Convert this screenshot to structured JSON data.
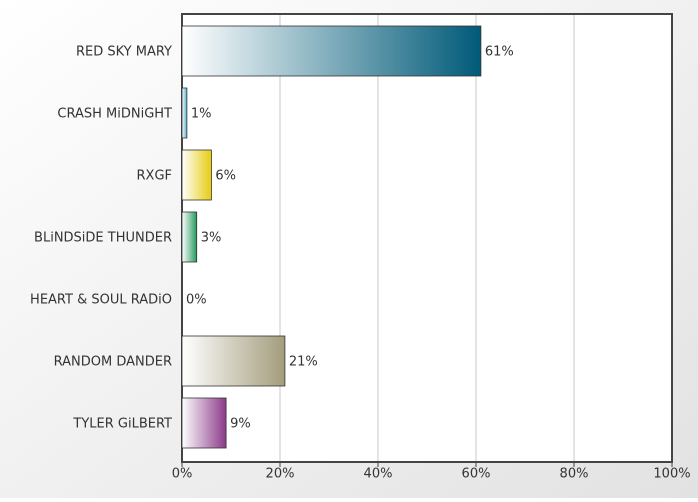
{
  "chart_data": {
    "type": "bar",
    "orientation": "horizontal",
    "categories": [
      "RED SKY MARY",
      "CRASH MiDNiGHT",
      "RXGF",
      "BLiNDSiDE THUNDER",
      "HEART & SOUL RADiO",
      "RANDOM DANDER",
      "TYLER GiLBERT"
    ],
    "values": [
      61,
      1,
      6,
      3,
      0,
      21,
      9
    ],
    "value_labels": [
      "61%",
      "1%",
      "6%",
      "3%",
      "0%",
      "21%",
      "9%"
    ],
    "colors": [
      "#005a78",
      "#4fb0cc",
      "#e6cc10",
      "#279a5e",
      "#888888",
      "#a39c7c",
      "#8a3a88"
    ],
    "xlim": [
      0,
      100
    ],
    "xticks": [
      {
        "value": 0,
        "label": "0%"
      },
      {
        "value": 20,
        "label": "20%"
      },
      {
        "value": 40,
        "label": "40%"
      },
      {
        "value": 60,
        "label": "60%"
      },
      {
        "value": 80,
        "label": "80%"
      },
      {
        "value": 100,
        "label": "100%"
      }
    ],
    "grid": true
  }
}
